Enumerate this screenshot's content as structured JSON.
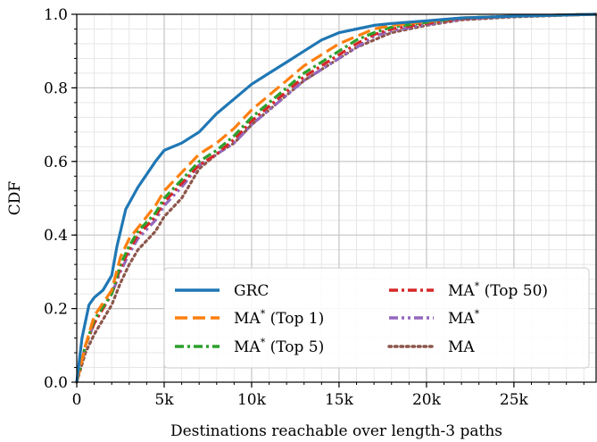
{
  "chart_data": {
    "type": "line",
    "title": "",
    "xlabel": "Destinations reachable over length-3 paths",
    "ylabel": "CDF",
    "xlim": [
      0,
      29700
    ],
    "ylim": [
      0,
      1
    ],
    "x_ticks": [
      0,
      5000,
      10000,
      15000,
      20000,
      25000
    ],
    "x_tick_labels": [
      "0",
      "5k",
      "10k",
      "15k",
      "20k",
      "25k"
    ],
    "y_ticks": [
      0,
      0.2,
      0.4,
      0.6,
      0.8,
      1.0
    ],
    "y_tick_labels": [
      "0.0",
      "0.2",
      "0.4",
      "0.6",
      "0.8",
      "1.0"
    ],
    "grid": true,
    "minor_grid": true,
    "legend_position": "lower-right",
    "legend_columns": 2,
    "series": [
      {
        "name": "GRC",
        "color": "#1f77b4",
        "dash": "solid",
        "x": [
          0,
          300,
          700,
          1000,
          1500,
          2000,
          2300,
          2800,
          3500,
          4500,
          5000,
          6000,
          7000,
          8000,
          9000,
          10000,
          11000,
          12000,
          13000,
          14000,
          15000,
          16000,
          17000,
          18000,
          20000,
          22000,
          25000,
          29700
        ],
        "y": [
          0,
          0.12,
          0.21,
          0.23,
          0.25,
          0.29,
          0.37,
          0.47,
          0.53,
          0.6,
          0.63,
          0.65,
          0.68,
          0.73,
          0.77,
          0.81,
          0.84,
          0.87,
          0.9,
          0.93,
          0.95,
          0.96,
          0.97,
          0.975,
          0.982,
          0.99,
          0.995,
          1.0
        ]
      },
      {
        "name": "MA* (Top 1)",
        "color": "#ff7f0e",
        "dash": "dashed",
        "x": [
          0,
          500,
          1000,
          2000,
          2500,
          3000,
          3500,
          4500,
          5000,
          6000,
          7000,
          8000,
          9000,
          10000,
          11000,
          12000,
          13000,
          14000,
          15000,
          16000,
          17000,
          18000,
          20000,
          22000,
          25000,
          29700
        ],
        "y": [
          0,
          0.1,
          0.18,
          0.25,
          0.34,
          0.39,
          0.42,
          0.48,
          0.52,
          0.57,
          0.62,
          0.65,
          0.69,
          0.74,
          0.78,
          0.82,
          0.86,
          0.89,
          0.92,
          0.94,
          0.96,
          0.97,
          0.98,
          0.99,
          0.995,
          1.0
        ]
      },
      {
        "name": "MA* (Top 5)",
        "color": "#2ca02c",
        "dash": "dashdot",
        "x": [
          0,
          500,
          1000,
          2000,
          2500,
          3000,
          3500,
          4500,
          5000,
          6000,
          7000,
          8000,
          9000,
          10000,
          11000,
          12000,
          13000,
          14000,
          15000,
          16000,
          17000,
          18000,
          20000,
          22000,
          25000,
          29700
        ],
        "y": [
          0,
          0.1,
          0.17,
          0.24,
          0.32,
          0.37,
          0.41,
          0.46,
          0.5,
          0.55,
          0.6,
          0.63,
          0.67,
          0.72,
          0.76,
          0.8,
          0.84,
          0.87,
          0.9,
          0.93,
          0.95,
          0.965,
          0.978,
          0.99,
          0.995,
          1.0
        ]
      },
      {
        "name": "MA* (Top 50)",
        "color": "#d62728",
        "dash": "dashdot",
        "x": [
          0,
          500,
          1000,
          2000,
          2500,
          3000,
          3500,
          4500,
          5000,
          6000,
          7000,
          8000,
          9000,
          10000,
          11000,
          12000,
          13000,
          14000,
          15000,
          16000,
          17000,
          18000,
          20000,
          22000,
          25000,
          29700
        ],
        "y": [
          0,
          0.1,
          0.16,
          0.24,
          0.31,
          0.36,
          0.4,
          0.45,
          0.49,
          0.54,
          0.59,
          0.62,
          0.66,
          0.71,
          0.75,
          0.79,
          0.83,
          0.86,
          0.89,
          0.92,
          0.945,
          0.96,
          0.975,
          0.988,
          0.995,
          1.0
        ]
      },
      {
        "name": "MA*",
        "color": "#9467bd",
        "dash": "dashdotdot",
        "x": [
          0,
          500,
          1000,
          2000,
          2500,
          3000,
          3500,
          4500,
          5000,
          6000,
          7000,
          8000,
          9000,
          10000,
          11000,
          12000,
          13000,
          14000,
          15000,
          16000,
          17000,
          18000,
          20000,
          22000,
          25000,
          29700
        ],
        "y": [
          0,
          0.1,
          0.16,
          0.24,
          0.3,
          0.35,
          0.39,
          0.44,
          0.48,
          0.53,
          0.59,
          0.62,
          0.65,
          0.7,
          0.74,
          0.78,
          0.82,
          0.85,
          0.88,
          0.91,
          0.94,
          0.955,
          0.972,
          0.987,
          0.995,
          1.0
        ]
      },
      {
        "name": "MA",
        "color": "#8c564b",
        "dash": "dotted",
        "x": [
          0,
          500,
          1000,
          2000,
          2500,
          3000,
          3500,
          4500,
          5000,
          6000,
          7000,
          8000,
          9000,
          10000,
          11000,
          12000,
          13000,
          14000,
          15000,
          16000,
          17000,
          18000,
          20000,
          22000,
          25000,
          29700
        ],
        "y": [
          0,
          0.08,
          0.13,
          0.21,
          0.27,
          0.32,
          0.36,
          0.41,
          0.45,
          0.5,
          0.58,
          0.62,
          0.65,
          0.7,
          0.74,
          0.78,
          0.82,
          0.85,
          0.88,
          0.91,
          0.93,
          0.95,
          0.97,
          0.985,
          0.993,
          1.0
        ]
      }
    ]
  }
}
